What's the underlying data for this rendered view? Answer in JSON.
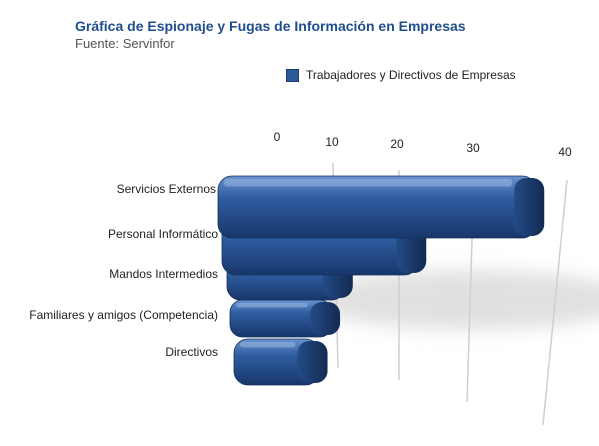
{
  "header": {
    "title": "Gráfica de Espionaje y Fugas de Información en Empresas",
    "source_line": "Fuente:   Servinfor"
  },
  "colors": {
    "bar": "#2d5a9b",
    "bar_dark": "#1a3a6a",
    "bar_light": "#5d86c2",
    "title": "#1f4e8c"
  },
  "chart_data": {
    "type": "bar",
    "orientation": "horizontal",
    "three_d": true,
    "title": "Gráfica de Espionaje y Fugas de Información en Empresas",
    "subtitle": "Fuente:   Servinfor",
    "categories": [
      "Servicios Externos",
      "Personal Informático",
      "Mandos Intermedios",
      "Familiares y amigos (Competencia)",
      "Directivos"
    ],
    "series": [
      {
        "name": "Trabajadores y Directivos de Empresas",
        "values": [
          37,
          22,
          13,
          12,
          11
        ]
      }
    ],
    "x_ticks": [
      "0",
      "10",
      "20",
      "30",
      "40"
    ],
    "xlim": [
      0,
      40
    ],
    "grid": true,
    "legend_position": "top-right"
  }
}
